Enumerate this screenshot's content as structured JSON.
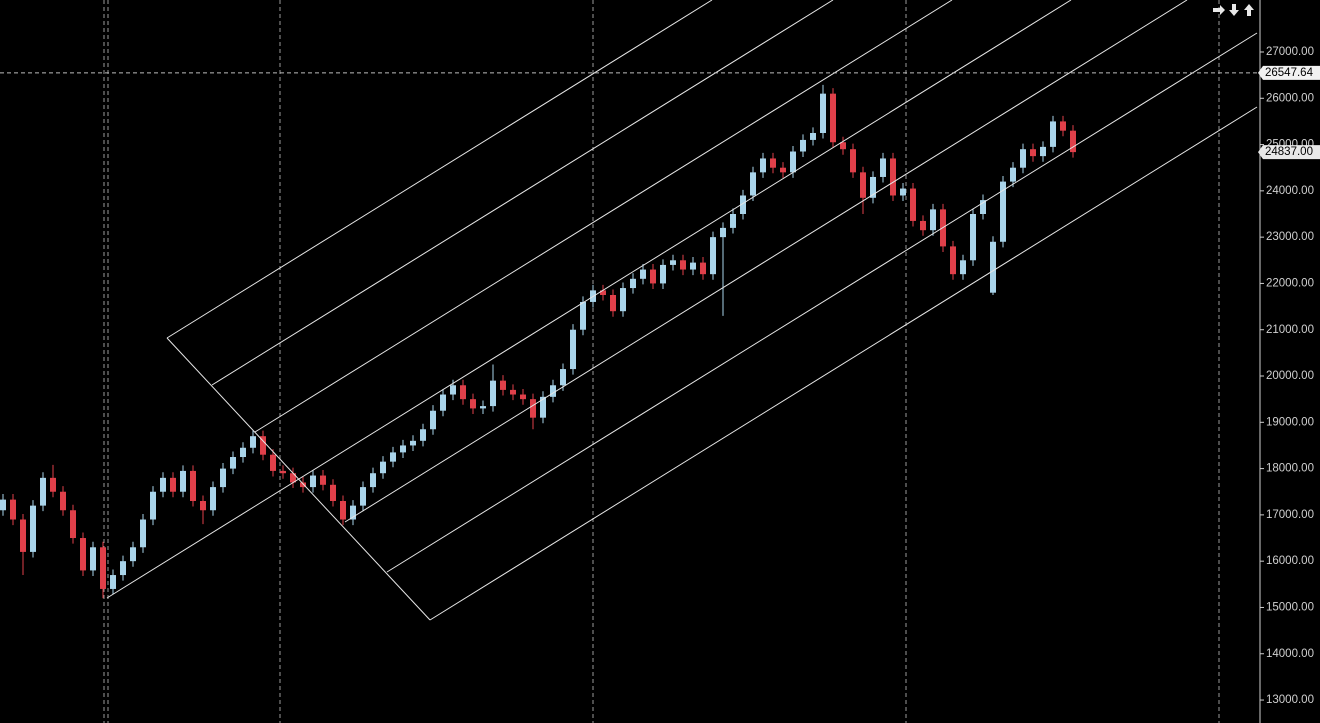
{
  "chart_data": {
    "type": "candlestick",
    "ylim": [
      12504,
      28123
    ],
    "yticks": [
      {
        "value": 13000,
        "label": "13000.00"
      },
      {
        "value": 14000,
        "label": "14000.00"
      },
      {
        "value": 15000,
        "label": "15000.00"
      },
      {
        "value": 16000,
        "label": "16000.00"
      },
      {
        "value": 17000,
        "label": "17000.00"
      },
      {
        "value": 18000,
        "label": "18000.00"
      },
      {
        "value": 19000,
        "label": "19000.00"
      },
      {
        "value": 20000,
        "label": "20000.00"
      },
      {
        "value": 21000,
        "label": "21000.00"
      },
      {
        "value": 22000,
        "label": "22000.00"
      },
      {
        "value": 23000,
        "label": "23000.00"
      },
      {
        "value": 24000,
        "label": "24000.00"
      },
      {
        "value": 25000,
        "label": "25000.00"
      },
      {
        "value": 26000,
        "label": "26000.00"
      },
      {
        "value": 27000,
        "label": "27000.00"
      }
    ],
    "price_lines": [
      {
        "value": 26547.64,
        "label": "26547.64"
      },
      {
        "value": 24837,
        "label": "24837.00"
      }
    ],
    "up_color": "#a9d4ea",
    "down_color": "#e0404a",
    "open": [
      17100,
      17330,
      16900,
      16200,
      17200,
      17800,
      17500,
      17100,
      16500,
      15800,
      16300,
      15400,
      15700,
      16000,
      16300,
      16900,
      17500,
      17800,
      17500,
      17950,
      17300,
      17100,
      17600,
      18000,
      18250,
      18450,
      18700,
      18300,
      17950,
      17900,
      17700,
      17600,
      17850,
      17650,
      17300,
      16900,
      17200,
      17600,
      17900,
      18150,
      18350,
      18500,
      18600,
      18850,
      19250,
      19600,
      19800,
      19500,
      19300,
      19350,
      19900,
      19700,
      19600,
      19500,
      19100,
      19550,
      19800,
      20150,
      21000,
      21600,
      21850,
      21750,
      21400,
      21900,
      22100,
      22300,
      22000,
      22400,
      22500,
      22300,
      22450,
      22200,
      23000,
      23200,
      23500,
      23900,
      24400,
      24700,
      24500,
      24400,
      24850,
      25100,
      25250,
      26100,
      25050,
      24900,
      24400,
      23850,
      24300,
      24700,
      23900,
      24050,
      23350,
      23150,
      23600,
      22800,
      22200,
      22500,
      23500,
      21800,
      22900,
      24200,
      24500,
      24900,
      24750,
      24950,
      25500,
      25300
    ],
    "high": [
      17450,
      17450,
      17020,
      17320,
      17920,
      18080,
      17620,
      17220,
      16620,
      16420,
      16420,
      15820,
      16120,
      16420,
      17020,
      17620,
      17920,
      17920,
      18070,
      18070,
      17420,
      17720,
      18120,
      18370,
      18570,
      18820,
      18820,
      18420,
      18070,
      18020,
      17820,
      17970,
      17970,
      17770,
      17420,
      17320,
      17720,
      18020,
      18270,
      18470,
      18620,
      18720,
      18970,
      19370,
      19720,
      19920,
      19920,
      19620,
      19470,
      20250,
      20020,
      19820,
      19720,
      19620,
      19670,
      19920,
      20270,
      21120,
      21720,
      21970,
      21970,
      21870,
      22020,
      22220,
      22420,
      22420,
      22520,
      22620,
      22620,
      22570,
      22570,
      23120,
      23320,
      23620,
      24020,
      24520,
      24820,
      24820,
      24620,
      24970,
      25220,
      25370,
      26290,
      26220,
      25170,
      25020,
      24520,
      24420,
      24820,
      24820,
      24170,
      24170,
      23470,
      23720,
      23720,
      22920,
      22620,
      23620,
      23920,
      23020,
      24320,
      24620,
      25020,
      25020,
      25070,
      25620,
      25620,
      25420
    ],
    "low": [
      16980,
      16780,
      15700,
      16080,
      17080,
      17380,
      16980,
      16380,
      15680,
      15680,
      15200,
      15280,
      15580,
      15880,
      16180,
      16780,
      17380,
      17380,
      17380,
      17180,
      16800,
      16980,
      17480,
      17880,
      18130,
      18330,
      18180,
      17830,
      17780,
      17580,
      17480,
      17480,
      17530,
      17180,
      16780,
      16780,
      17080,
      17480,
      17780,
      18030,
      18230,
      18380,
      18480,
      18730,
      19130,
      19480,
      19380,
      19180,
      19180,
      19230,
      19580,
      19480,
      19380,
      18850,
      18980,
      19430,
      19680,
      20030,
      20880,
      21480,
      21630,
      21280,
      21280,
      21780,
      21980,
      21880,
      21880,
      22280,
      22180,
      22180,
      22080,
      22080,
      21300,
      23080,
      23380,
      23780,
      24280,
      24380,
      24280,
      24280,
      24730,
      24980,
      25130,
      24930,
      24780,
      24280,
      23500,
      23730,
      24180,
      23780,
      23780,
      23230,
      23030,
      23030,
      22680,
      22080,
      22080,
      22380,
      23380,
      21750,
      22780,
      24080,
      24380,
      24630,
      24630,
      24830,
      25180,
      24717
    ],
    "close": [
      17330,
      16900,
      16200,
      17200,
      17800,
      17500,
      17100,
      16500,
      15800,
      16300,
      15400,
      15700,
      16000,
      16300,
      16900,
      17500,
      17800,
      17500,
      17950,
      17300,
      17100,
      17600,
      18000,
      18250,
      18450,
      18700,
      18300,
      17950,
      17900,
      17700,
      17600,
      17850,
      17650,
      17300,
      16900,
      17200,
      17600,
      17900,
      18150,
      18350,
      18500,
      18600,
      18850,
      19250,
      19600,
      19800,
      19500,
      19300,
      19350,
      19900,
      19700,
      19600,
      19500,
      19100,
      19550,
      19800,
      20150,
      21000,
      21600,
      21850,
      21750,
      21400,
      21900,
      22100,
      22300,
      22000,
      22400,
      22500,
      22300,
      22450,
      22200,
      23000,
      23200,
      23500,
      23900,
      24400,
      24700,
      24500,
      24400,
      24850,
      25100,
      25250,
      26100,
      25050,
      24900,
      24400,
      23850,
      24300,
      24700,
      23900,
      24050,
      23350,
      23150,
      23600,
      22800,
      22200,
      22500,
      23500,
      23800,
      22900,
      24200,
      24500,
      24900,
      24750,
      24950,
      25500,
      25300,
      24837
    ]
  }
}
